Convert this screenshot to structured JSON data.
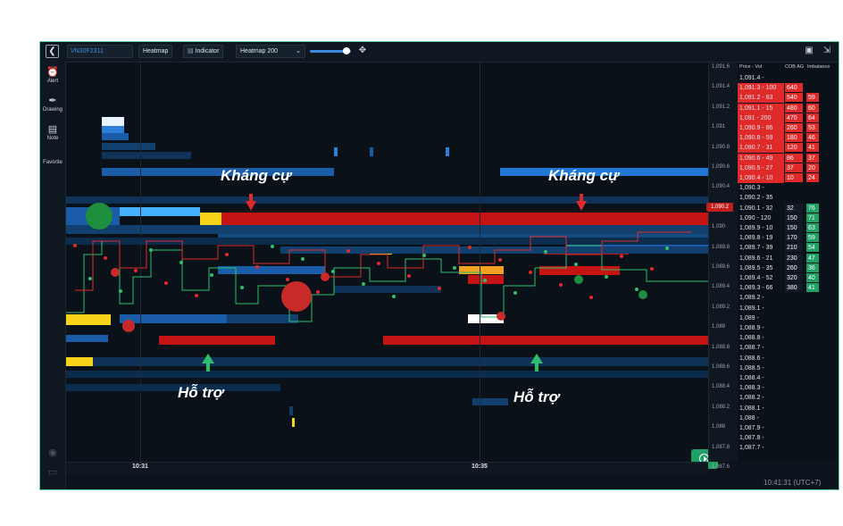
{
  "toolbar": {
    "symbol": "VN30F2311",
    "heatmap_label": "Heatmap",
    "indicator_label": "Indicator",
    "heatmap_level_label": "Heatmap 200"
  },
  "sidebar": {
    "items": [
      {
        "label": "Alert"
      },
      {
        "label": "Drawing"
      },
      {
        "label": "Note"
      },
      {
        "label": "Favorite"
      }
    ]
  },
  "annotations": {
    "resistance_left": "Kháng cự",
    "resistance_right": "Kháng cự",
    "support_left": "Hỗ trợ",
    "support_right": "Hỗ trợ"
  },
  "xaxis": {
    "labels": [
      "10:31",
      "10:35"
    ]
  },
  "clock": "10:41:31 (UTC+7)",
  "yaxis": {
    "ticks": [
      "1,091.6",
      "1,091.4",
      "1,091.2",
      "1,091",
      "1,090.8",
      "1,090.6",
      "1,090.4",
      "1,090.2",
      "1,090",
      "1,089.8",
      "1,089.6",
      "1,089.4",
      "1,089.2",
      "1,089",
      "1,088.8",
      "1,088.6",
      "1,088.4",
      "1,088.2",
      "1,088",
      "1,087.8",
      "1,087.6"
    ],
    "current_price": "1,090.2"
  },
  "dom": {
    "headers": [
      "Price - Vol",
      "COB AG",
      "Imbalance"
    ],
    "rows": [
      {
        "price": "1,091.4 -",
        "cob": "",
        "imb": "",
        "side": "none"
      },
      {
        "price": "1,091.3 - 100",
        "cob": "640",
        "imb": "",
        "side": "ask"
      },
      {
        "price": "1,091.2 - 63",
        "cob": "540",
        "imb": "59",
        "side": "ask"
      },
      {
        "price": "1,091.1 - 15",
        "cob": "480",
        "imb": "60",
        "side": "ask"
      },
      {
        "price": "1,091 - 200",
        "cob": "470",
        "imb": "64",
        "side": "ask"
      },
      {
        "price": "1,090.9 - 86",
        "cob": "260",
        "imb": "53",
        "side": "ask"
      },
      {
        "price": "1,090.8 - 59",
        "cob": "180",
        "imb": "46",
        "side": "ask"
      },
      {
        "price": "1,090.7 - 31",
        "cob": "120",
        "imb": "41",
        "side": "ask"
      },
      {
        "price": "1,090.6 - 49",
        "cob": "86",
        "imb": "37",
        "side": "ask"
      },
      {
        "price": "1,090.5 - 27",
        "cob": "37",
        "imb": "20",
        "side": "ask"
      },
      {
        "price": "1,090.4 - 10",
        "cob": "10",
        "imb": "24",
        "side": "ask"
      },
      {
        "price": "1,090.3 -",
        "cob": "",
        "imb": "",
        "side": "none"
      },
      {
        "price": "1,090.2 - 35",
        "cob": "",
        "imb": "",
        "side": "none"
      },
      {
        "price": "1,090.1 - 32",
        "cob": "32",
        "imb": "76",
        "side": "bid"
      },
      {
        "price": "1,090 - 120",
        "cob": "150",
        "imb": "71",
        "side": "bid"
      },
      {
        "price": "1,089.9 - 10",
        "cob": "150",
        "imb": "63",
        "side": "bid"
      },
      {
        "price": "1,089.8 - 19",
        "cob": "170",
        "imb": "59",
        "side": "bid"
      },
      {
        "price": "1,089.7 - 39",
        "cob": "210",
        "imb": "54",
        "side": "bid"
      },
      {
        "price": "1,089.6 - 21",
        "cob": "230",
        "imb": "47",
        "side": "bid"
      },
      {
        "price": "1,089.5 - 35",
        "cob": "260",
        "imb": "36",
        "side": "bid"
      },
      {
        "price": "1,089.4 - 52",
        "cob": "320",
        "imb": "40",
        "side": "bid"
      },
      {
        "price": "1,089.3 - 66",
        "cob": "380",
        "imb": "41",
        "side": "bid"
      },
      {
        "price": "1,089.2 -",
        "cob": "",
        "imb": "",
        "side": "none"
      },
      {
        "price": "1,089.1 -",
        "cob": "",
        "imb": "",
        "side": "none"
      },
      {
        "price": "1,089 -",
        "cob": "",
        "imb": "",
        "side": "none"
      },
      {
        "price": "1,088.9 -",
        "cob": "",
        "imb": "",
        "side": "none"
      },
      {
        "price": "1,088.8 -",
        "cob": "",
        "imb": "",
        "side": "none"
      },
      {
        "price": "1,088.7 -",
        "cob": "",
        "imb": "",
        "side": "none"
      },
      {
        "price": "1,088.6 -",
        "cob": "",
        "imb": "",
        "side": "none"
      },
      {
        "price": "1,088.5 -",
        "cob": "",
        "imb": "",
        "side": "none"
      },
      {
        "price": "1,088.4 -",
        "cob": "",
        "imb": "",
        "side": "none"
      },
      {
        "price": "1,088.3 -",
        "cob": "",
        "imb": "",
        "side": "none"
      },
      {
        "price": "1,088.2 -",
        "cob": "",
        "imb": "",
        "side": "none"
      },
      {
        "price": "1,088.1 -",
        "cob": "",
        "imb": "",
        "side": "none"
      },
      {
        "price": "1,088 -",
        "cob": "",
        "imb": "",
        "side": "none"
      },
      {
        "price": "1,087.9 -",
        "cob": "",
        "imb": "",
        "side": "none"
      },
      {
        "price": "1,087.8 -",
        "cob": "",
        "imb": "",
        "side": "none"
      },
      {
        "price": "1,087.7 -",
        "cob": "",
        "imb": "",
        "side": "none"
      }
    ]
  },
  "colors": {
    "accent": "#3d8ce0",
    "ask": "#e02a2a",
    "bid": "#1fa065",
    "frame": "#5fd3b0"
  }
}
